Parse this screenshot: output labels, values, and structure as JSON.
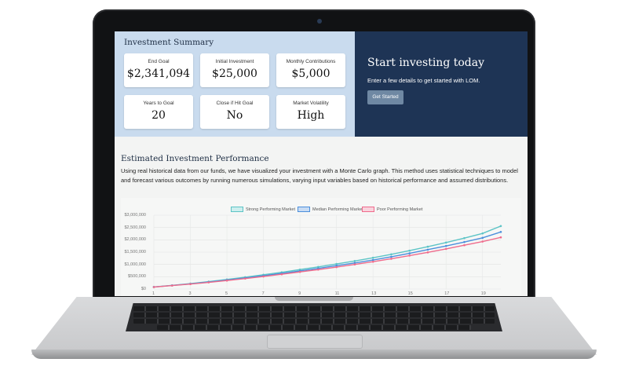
{
  "summary": {
    "title": "Investment Summary",
    "cards": [
      {
        "label": "End Goal",
        "value": "$2,341,094"
      },
      {
        "label": "Initial Investment",
        "value": "$25,000"
      },
      {
        "label": "Monthly Contributions",
        "value": "$5,000"
      },
      {
        "label": "Years to Goal",
        "value": "20"
      },
      {
        "label": "Close if Hit Goal",
        "value": "No"
      },
      {
        "label": "Market Volatility",
        "value": "High"
      }
    ]
  },
  "cta": {
    "title": "Start investing today",
    "text": "Enter a few details to get started with LOM.",
    "button_label": "Get Started"
  },
  "performance": {
    "title": "Estimated Investment Performance",
    "description": "Using real historical data from our funds, we have visualized your investment with a Monte Carlo graph. This method uses statistical techniques to model and forecast various outcomes by running numerous simulations, varying input variables based on historical performance and assumed distributions."
  },
  "colors": {
    "summary_bg": "#c9dbee",
    "cta_bg": "#1e3455",
    "strong": "#5cc4c6",
    "median": "#4b8fdc",
    "poor": "#ef6b8c"
  },
  "chart_data": {
    "type": "line",
    "x": [
      1,
      2,
      3,
      4,
      5,
      6,
      7,
      8,
      9,
      10,
      11,
      12,
      13,
      14,
      15,
      16,
      17,
      18,
      19,
      20
    ],
    "x_tick_labels": [
      "1",
      "3",
      "5",
      "7",
      "9",
      "11",
      "13",
      "15",
      "17",
      "19"
    ],
    "y_tick_labels": [
      "$0",
      "$500,000",
      "$1,000,000",
      "$1,500,000",
      "$2,000,000",
      "$2,500,000",
      "$3,000,000"
    ],
    "ylim": [
      0,
      3000000
    ],
    "grid": true,
    "legend_position": "top",
    "series": [
      {
        "name": "Strong Performing Market",
        "color": "#5cc4c6",
        "values": [
          85000,
          150000,
          220000,
          300000,
          390000,
          480000,
          580000,
          680000,
          790000,
          900000,
          1020000,
          1140000,
          1270000,
          1410000,
          1560000,
          1720000,
          1890000,
          2070000,
          2260000,
          2560000
        ]
      },
      {
        "name": "Median Performing Market",
        "color": "#4b8fdc",
        "values": [
          82000,
          145000,
          210000,
          285000,
          365000,
          450000,
          540000,
          635000,
          735000,
          840000,
          950000,
          1060000,
          1180000,
          1310000,
          1450000,
          1600000,
          1750000,
          1910000,
          2080000,
          2320000
        ]
      },
      {
        "name": "Poor Performing Market",
        "color": "#ef6b8c",
        "values": [
          80000,
          140000,
          200000,
          270000,
          345000,
          425000,
          510000,
          600000,
          695000,
          790000,
          890000,
          1000000,
          1110000,
          1230000,
          1360000,
          1490000,
          1630000,
          1780000,
          1930000,
          2100000
        ]
      }
    ]
  }
}
